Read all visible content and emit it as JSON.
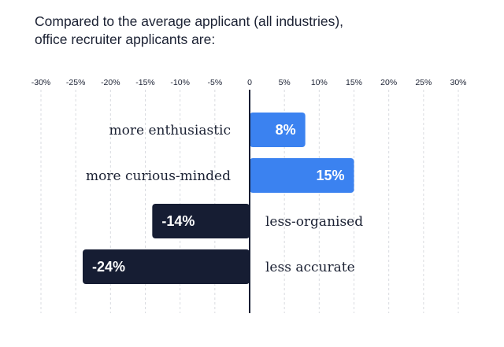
{
  "chart_data": {
    "type": "bar",
    "orientation": "horizontal",
    "title_lines": [
      "Compared to the average applicant (all industries),",
      "office recruiter applicants are:"
    ],
    "xlabel": "",
    "ylabel": "",
    "xlim": [
      -30,
      30
    ],
    "x_ticks": [
      -30,
      -25,
      -20,
      -15,
      -10,
      -5,
      0,
      5,
      10,
      15,
      20,
      25,
      30
    ],
    "x_tick_labels": [
      "-30%",
      "-25%",
      "-20%",
      "-15%",
      "-10%",
      "-5%",
      "0",
      "5%",
      "10%",
      "15%",
      "20%",
      "25%",
      "30%"
    ],
    "grid": "vertical dashed",
    "categories": [
      "more enthusiastic",
      "more curious-minded",
      "less-organised",
      "less accurate"
    ],
    "values": [
      8,
      15,
      -14,
      -24
    ],
    "value_labels": [
      "8%",
      "15%",
      "-14%",
      "-24%"
    ],
    "colors": {
      "positive": "#3b82f0",
      "negative": "#161d33",
      "axis": "#161d33",
      "grid": "#d9dbe0",
      "text": "#1b2133"
    }
  }
}
